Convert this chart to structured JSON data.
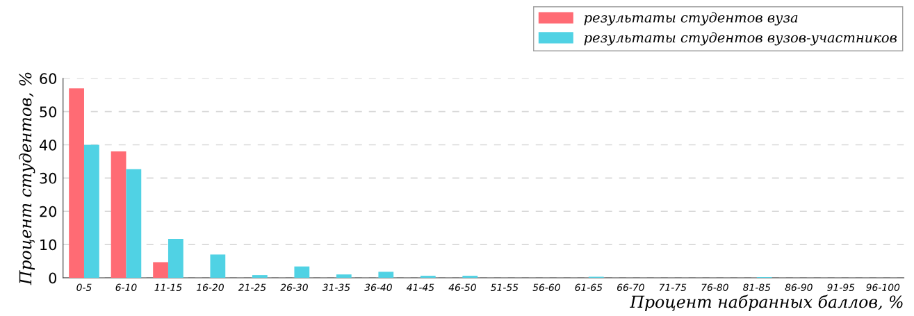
{
  "chart_data": {
    "type": "bar",
    "xlabel": "Процент набранных баллов, %",
    "ylabel": "Процент студентов, %",
    "categories": [
      "0-5",
      "6-10",
      "11-15",
      "16-20",
      "21-25",
      "26-30",
      "31-35",
      "36-40",
      "41-45",
      "46-50",
      "51-55",
      "56-60",
      "61-65",
      "66-70",
      "71-75",
      "76-80",
      "81-85",
      "86-90",
      "91-95",
      "96-100"
    ],
    "series": [
      {
        "name": "результаты студентов вуза",
        "color": "#ff6b74",
        "values": [
          57,
          38,
          4.7,
          0,
          0,
          0,
          0,
          0,
          0,
          0,
          0,
          0,
          0,
          0,
          0,
          0,
          0,
          0,
          0,
          0
        ]
      },
      {
        "name": "результаты студентов вузов-участников",
        "color": "#50d2e4",
        "values": [
          40,
          32.7,
          11.7,
          7.0,
          0.8,
          3.4,
          1.0,
          1.8,
          0.6,
          0.6,
          0,
          0,
          0.3,
          0,
          0,
          0,
          0.2,
          0,
          0,
          0
        ]
      }
    ],
    "ylim": [
      0,
      60
    ],
    "yticks": [
      0,
      10,
      20,
      30,
      40,
      50,
      60
    ],
    "grid": "y",
    "legend": "top right"
  }
}
